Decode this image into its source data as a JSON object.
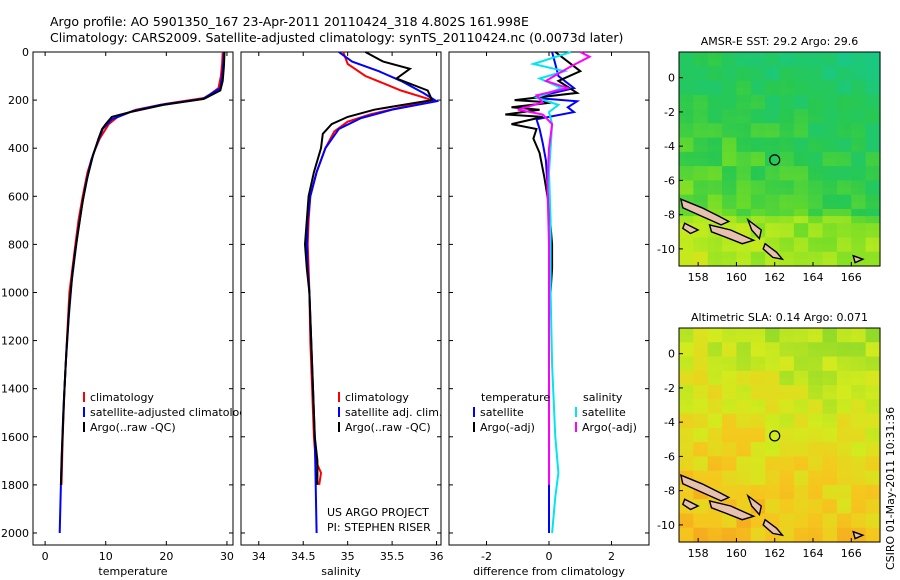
{
  "header": {
    "title_line1": "Argo profile: AO 5901350_167 23-Apr-2011 20110424_318 4.802S 161.998E",
    "title_line2": "Climatology: CARS2009. Satellite-adjusted climatology: synTS_20110424.nc (0.0073d later)"
  },
  "side_stamp": "CSIRO 01-May-2011 10:31:36",
  "credit": {
    "line1": "US ARGO PROJECT",
    "line2": "PI: STEPHEN RISER"
  },
  "colors": {
    "climatology": "#ff0000",
    "satellite": "#0000ff",
    "argo": "#000000",
    "sat_diff_s": "#00e5ee",
    "argo_diff_s": "#ff00ff"
  },
  "chart_data": [
    {
      "type": "line",
      "xlabel": "temperature",
      "xticks": [
        "0",
        "10",
        "20",
        "30"
      ],
      "yticks": [
        "0",
        "200",
        "400",
        "600",
        "800",
        "1000",
        "1200",
        "1400",
        "1600",
        "1800",
        "2000"
      ],
      "xlim": [
        -2,
        31
      ],
      "ylim": [
        2050,
        0
      ],
      "legend": [
        "climatology",
        "satellite-adjusted climatolog",
        "Argo(..raw -QC)"
      ],
      "series": [
        {
          "name": "climatology",
          "color": "#ff0000",
          "points": [
            [
              29.3,
              0
            ],
            [
              29.2,
              50
            ],
            [
              29.0,
              100
            ],
            [
              28.6,
              150
            ],
            [
              26.5,
              190
            ],
            [
              20,
              215
            ],
            [
              15,
              240
            ],
            [
              12,
              270
            ],
            [
              10.5,
              300
            ],
            [
              9,
              360
            ],
            [
              8,
              420
            ],
            [
              7,
              500
            ],
            [
              6.2,
              600
            ],
            [
              5.5,
              700
            ],
            [
              5,
              800
            ],
            [
              4.5,
              900
            ],
            [
              4,
              1000
            ],
            [
              3.6,
              1200
            ],
            [
              3.2,
              1400
            ],
            [
              2.9,
              1600
            ],
            [
              2.7,
              1800
            ]
          ]
        },
        {
          "name": "satellite-adjusted climatolog",
          "color": "#0000ff",
          "points": [
            [
              29.5,
              0
            ],
            [
              29.4,
              50
            ],
            [
              29.2,
              100
            ],
            [
              28.9,
              150
            ],
            [
              26,
              195
            ],
            [
              19,
              220
            ],
            [
              14.5,
              245
            ],
            [
              11,
              280
            ],
            [
              9.5,
              320
            ],
            [
              8.6,
              380
            ],
            [
              7.6,
              450
            ],
            [
              6.7,
              550
            ],
            [
              6,
              650
            ],
            [
              5.4,
              750
            ],
            [
              4.9,
              850
            ],
            [
              4.4,
              950
            ],
            [
              3.9,
              1100
            ],
            [
              3.4,
              1300
            ],
            [
              3.0,
              1500
            ],
            [
              2.7,
              1700
            ],
            [
              2.5,
              1900
            ],
            [
              2.4,
              2000
            ]
          ]
        },
        {
          "name": "Argo(..raw -QC)",
          "color": "#000000",
          "points": [
            [
              29.6,
              0
            ],
            [
              29.5,
              60
            ],
            [
              29.3,
              120
            ],
            [
              28.9,
              160
            ],
            [
              26.2,
              195
            ],
            [
              19.5,
              220
            ],
            [
              14,
              250
            ],
            [
              11,
              270
            ],
            [
              10,
              300
            ],
            [
              9.4,
              320
            ],
            [
              8.8,
              360
            ],
            [
              7.9,
              430
            ],
            [
              7.0,
              520
            ],
            [
              6.2,
              620
            ],
            [
              5.6,
              720
            ],
            [
              5.0,
              820
            ],
            [
              4.5,
              920
            ],
            [
              4.0,
              1050
            ],
            [
              3.5,
              1250
            ],
            [
              3.1,
              1450
            ],
            [
              2.8,
              1650
            ],
            [
              2.6,
              1800
            ]
          ]
        }
      ]
    },
    {
      "type": "line",
      "xlabel": "salinity",
      "xticks": [
        "34",
        "34.5",
        "35",
        "35.5",
        "36"
      ],
      "yticks": [],
      "xlim": [
        33.8,
        36.05
      ],
      "ylim": [
        2050,
        0
      ],
      "legend": [
        "climatology",
        "satellite adj. clim.",
        "Argo(..raw -QC)"
      ],
      "series": [
        {
          "name": "climatology",
          "color": "#ff0000",
          "points": [
            [
              34.95,
              0
            ],
            [
              35.0,
              50
            ],
            [
              35.2,
              100
            ],
            [
              35.6,
              160
            ],
            [
              35.95,
              200
            ],
            [
              35.6,
              230
            ],
            [
              35.25,
              260
            ],
            [
              35.0,
              290
            ],
            [
              34.85,
              330
            ],
            [
              34.75,
              400
            ],
            [
              34.65,
              500
            ],
            [
              34.58,
              600
            ],
            [
              34.56,
              700
            ],
            [
              34.55,
              800
            ],
            [
              34.56,
              900
            ],
            [
              34.57,
              1000
            ],
            [
              34.58,
              1200
            ],
            [
              34.6,
              1400
            ],
            [
              34.62,
              1600
            ],
            [
              34.64,
              1700
            ],
            [
              34.7,
              1750
            ],
            [
              34.68,
              1800
            ]
          ]
        },
        {
          "name": "satellite adj. clim.",
          "color": "#0000ff",
          "points": [
            [
              34.9,
              0
            ],
            [
              35.05,
              40
            ],
            [
              35.35,
              80
            ],
            [
              35.6,
              120
            ],
            [
              35.85,
              170
            ],
            [
              36.0,
              205
            ],
            [
              35.5,
              240
            ],
            [
              35.15,
              275
            ],
            [
              34.9,
              320
            ],
            [
              34.75,
              400
            ],
            [
              34.65,
              500
            ],
            [
              34.58,
              600
            ],
            [
              34.55,
              700
            ],
            [
              34.54,
              800
            ],
            [
              34.55,
              900
            ],
            [
              34.57,
              1000
            ],
            [
              34.59,
              1200
            ],
            [
              34.61,
              1400
            ],
            [
              34.63,
              1600
            ],
            [
              34.64,
              1800
            ],
            [
              34.65,
              2000
            ]
          ]
        },
        {
          "name": "Argo(..raw -QC)",
          "color": "#000000",
          "points": [
            [
              35.2,
              0
            ],
            [
              35.4,
              40
            ],
            [
              35.7,
              70
            ],
            [
              35.55,
              110
            ],
            [
              35.9,
              160
            ],
            [
              35.95,
              200
            ],
            [
              35.7,
              215
            ],
            [
              35.3,
              240
            ],
            [
              35.0,
              270
            ],
            [
              34.82,
              300
            ],
            [
              34.72,
              340
            ],
            [
              34.7,
              400
            ],
            [
              34.62,
              500
            ],
            [
              34.56,
              600
            ],
            [
              34.54,
              700
            ],
            [
              34.52,
              800
            ],
            [
              34.54,
              900
            ],
            [
              34.57,
              1000
            ],
            [
              34.59,
              1200
            ],
            [
              34.61,
              1400
            ],
            [
              34.63,
              1600
            ],
            [
              34.66,
              1700
            ],
            [
              34.66,
              1800
            ]
          ]
        }
      ]
    },
    {
      "type": "line",
      "xlabel": "difference from climatology",
      "xticks": [
        "-2",
        "0",
        "2"
      ],
      "yticks": [],
      "xlim": [
        -3.2,
        3.2
      ],
      "ylim": [
        2050,
        0
      ],
      "legend": {
        "temperature_header": "temperature",
        "salinity_header": "salinity",
        "temperature": [
          "satellite",
          "Argo(-adj)"
        ],
        "salinity": [
          "satellite",
          "Argo(-adj)"
        ]
      },
      "series": [
        {
          "name": "satellite (temperature)",
          "color": "#0000ff",
          "points": [
            [
              0.1,
              0
            ],
            [
              0.2,
              50
            ],
            [
              0.3,
              100
            ],
            [
              0.8,
              150
            ],
            [
              -0.5,
              190
            ],
            [
              0.9,
              205
            ],
            [
              0.6,
              230
            ],
            [
              0.8,
              250
            ],
            [
              -0.4,
              280
            ],
            [
              -0.3,
              320
            ],
            [
              -0.2,
              380
            ],
            [
              -0.1,
              450
            ],
            [
              -0.05,
              550
            ],
            [
              0,
              700
            ],
            [
              0,
              1000
            ],
            [
              0,
              1500
            ],
            [
              0,
              2000
            ]
          ]
        },
        {
          "name": "Argo(-adj) (temperature)",
          "color": "#000000",
          "points": [
            [
              0.2,
              0
            ],
            [
              0.6,
              40
            ],
            [
              1.0,
              80
            ],
            [
              0.3,
              120
            ],
            [
              0.9,
              170
            ],
            [
              -1.1,
              200
            ],
            [
              0.1,
              210
            ],
            [
              -1.2,
              230
            ],
            [
              -0.3,
              240
            ],
            [
              -1.4,
              260
            ],
            [
              -0.2,
              270
            ],
            [
              -1.2,
              300
            ],
            [
              -0.4,
              320
            ],
            [
              -0.5,
              360
            ],
            [
              -0.3,
              420
            ],
            [
              -0.15,
              520
            ],
            [
              0,
              640
            ],
            [
              0.1,
              800
            ],
            [
              0.1,
              900
            ],
            [
              0,
              1100
            ],
            [
              0,
              1400
            ],
            [
              0,
              1700
            ],
            [
              0,
              1800
            ]
          ]
        },
        {
          "name": "satellite (salinity)",
          "color": "#00e5ee",
          "points": [
            [
              0.7,
              0
            ],
            [
              -0.5,
              50
            ],
            [
              0.5,
              80
            ],
            [
              -0.3,
              110
            ],
            [
              0.4,
              150
            ],
            [
              -0.4,
              190
            ],
            [
              0.3,
              220
            ],
            [
              0,
              250
            ],
            [
              0.1,
              300
            ],
            [
              0.05,
              400
            ],
            [
              0,
              500
            ],
            [
              0.05,
              700
            ],
            [
              0.05,
              1000
            ],
            [
              0.1,
              1300
            ],
            [
              0.2,
              1600
            ],
            [
              0.3,
              1750
            ],
            [
              0.2,
              1850
            ],
            [
              0.1,
              2000
            ]
          ]
        },
        {
          "name": "Argo(-adj) (salinity)",
          "color": "#ff00ff",
          "points": [
            [
              1.0,
              0
            ],
            [
              1.3,
              20
            ],
            [
              0.7,
              60
            ],
            [
              0.3,
              90
            ],
            [
              -0.1,
              120
            ],
            [
              0.6,
              150
            ],
            [
              -0.4,
              180
            ],
            [
              -0.2,
              210
            ],
            [
              -1.0,
              240
            ],
            [
              -0.2,
              260
            ],
            [
              0.1,
              300
            ],
            [
              0,
              400
            ],
            [
              -0.05,
              550
            ],
            [
              0,
              800
            ],
            [
              0,
              1000
            ],
            [
              0,
              1300
            ],
            [
              0,
              1800
            ]
          ]
        }
      ]
    },
    {
      "type": "heatmap",
      "title": "AMSR-E SST: 29.2 Argo: 29.6",
      "xticks": [
        "158",
        "160",
        "162",
        "164",
        "166"
      ],
      "yticks": [
        "0",
        "-2",
        "-4",
        "-6",
        "-8",
        "-10"
      ],
      "xlim": [
        157,
        167.5
      ],
      "ylim": [
        -11,
        1.5
      ],
      "argo_position": {
        "lon": 162.0,
        "lat": -4.8
      }
    },
    {
      "type": "heatmap",
      "title": "Altimetric SLA: 0.14 Argo: 0.071",
      "xticks": [
        "158",
        "160",
        "162",
        "164",
        "166"
      ],
      "yticks": [
        "0",
        "-2",
        "-4",
        "-6",
        "-8",
        "-10"
      ],
      "xlim": [
        157,
        167.5
      ],
      "ylim": [
        -11,
        1.5
      ],
      "argo_position": {
        "lon": 162.0,
        "lat": -4.8
      }
    }
  ]
}
